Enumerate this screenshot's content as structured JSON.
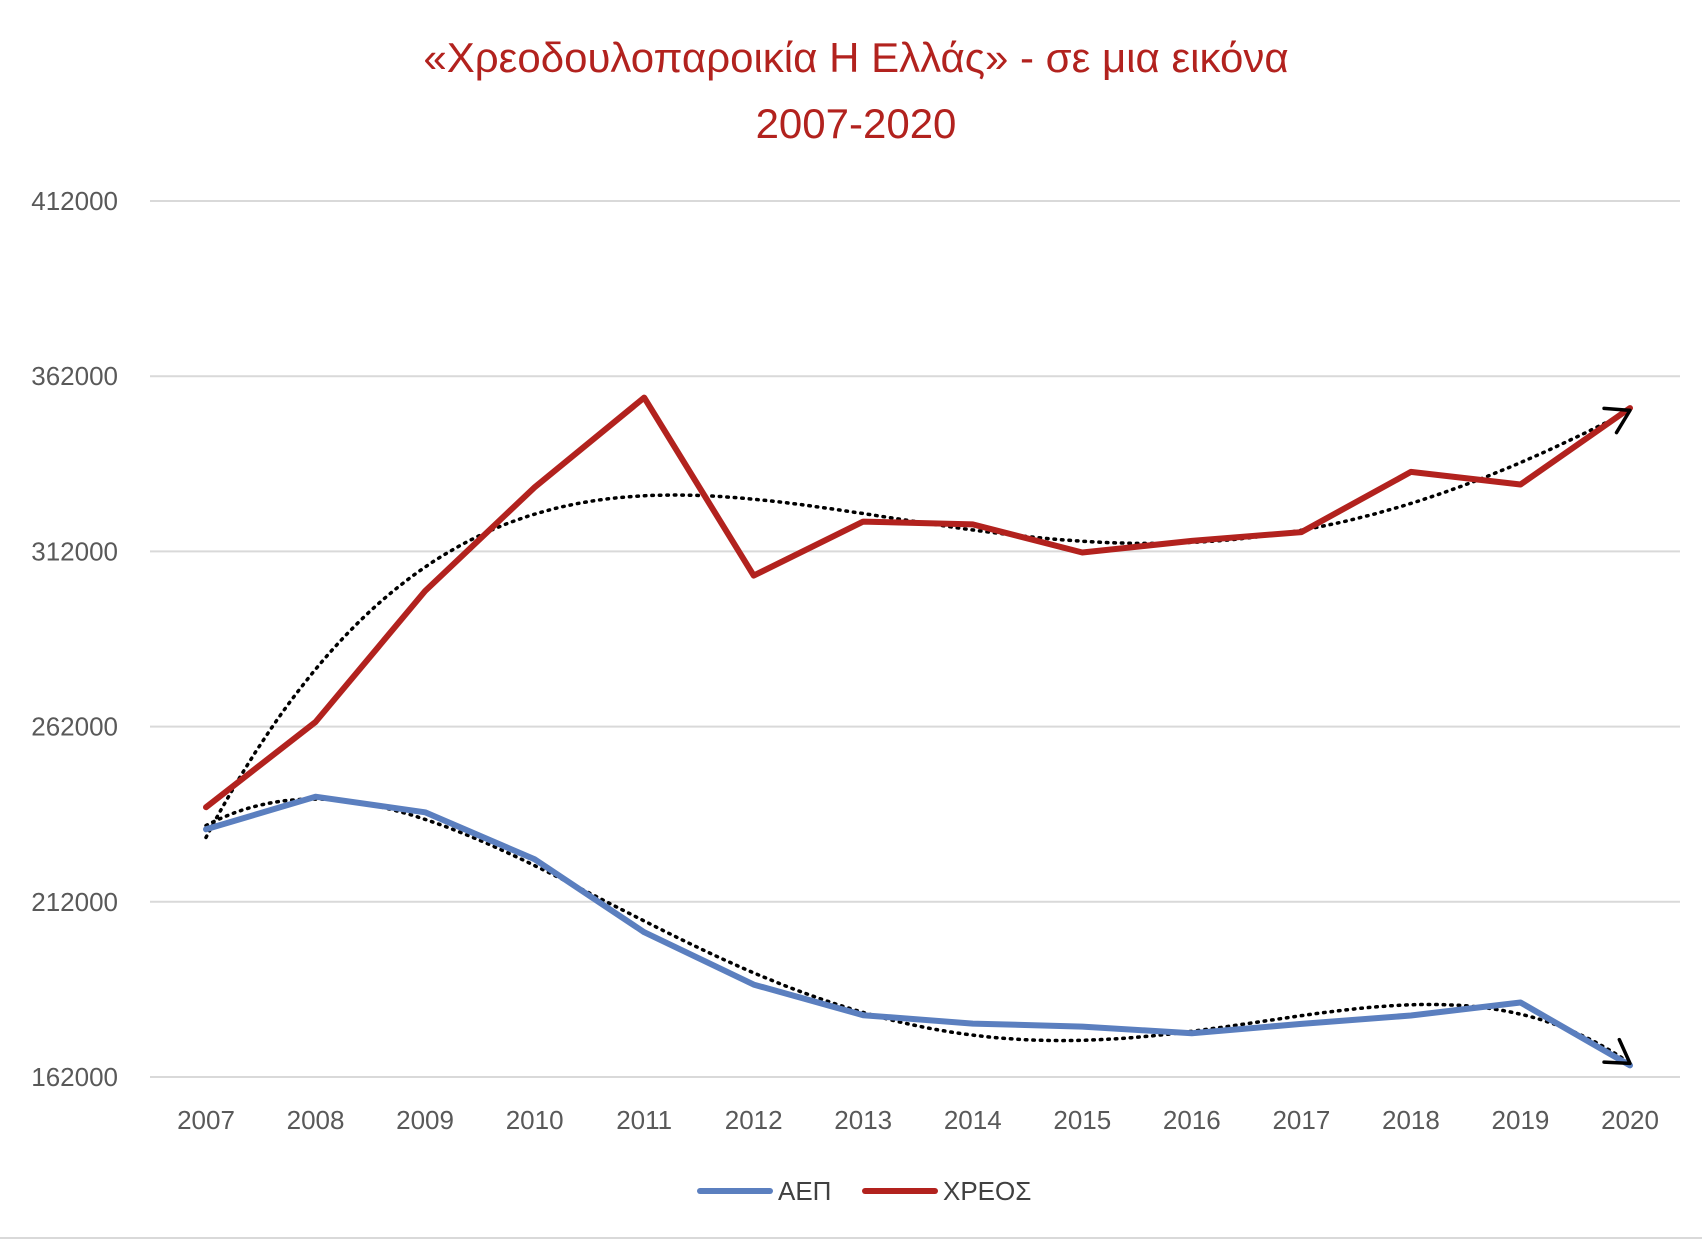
{
  "chart_data": {
    "type": "line",
    "title_lines": [
      "«Χρεοδουλοπαροικία Η Ελλάς»  - σε μια εικόνα",
      "2007-2020"
    ],
    "categories": [
      "2007",
      "2008",
      "2009",
      "2010",
      "2011",
      "2012",
      "2013",
      "2014",
      "2015",
      "2016",
      "2017",
      "2018",
      "2019",
      "2020"
    ],
    "ylim": [
      162000,
      412000
    ],
    "y_ticks": [
      162000,
      212000,
      262000,
      312000,
      362000,
      412000
    ],
    "y_tick_labels": [
      "162000",
      "212000",
      "262000",
      "312000",
      "362000",
      "412000"
    ],
    "grid": true,
    "legend_position": "bottom",
    "series": [
      {
        "name": "ΑΕΠ",
        "color": "#5B7FBF",
        "values": [
          232700,
          241990,
          237530,
          224120,
          203310,
          188380,
          179650,
          177240,
          176370,
          174490,
          177150,
          179560,
          183250,
          165300
        ],
        "trend": "dotted-polynomial"
      },
      {
        "name": "ΧΡΕΟΣ",
        "color": "#B2221E",
        "values": [
          239000,
          263300,
          300700,
          330300,
          355900,
          305100,
          320500,
          319700,
          311700,
          315000,
          317500,
          334700,
          331100,
          352900
        ],
        "trend": "dotted-polynomial"
      }
    ],
    "colors": {
      "title": "#B2221E",
      "grid": "#D9D9D9",
      "trend": "#000000"
    }
  }
}
